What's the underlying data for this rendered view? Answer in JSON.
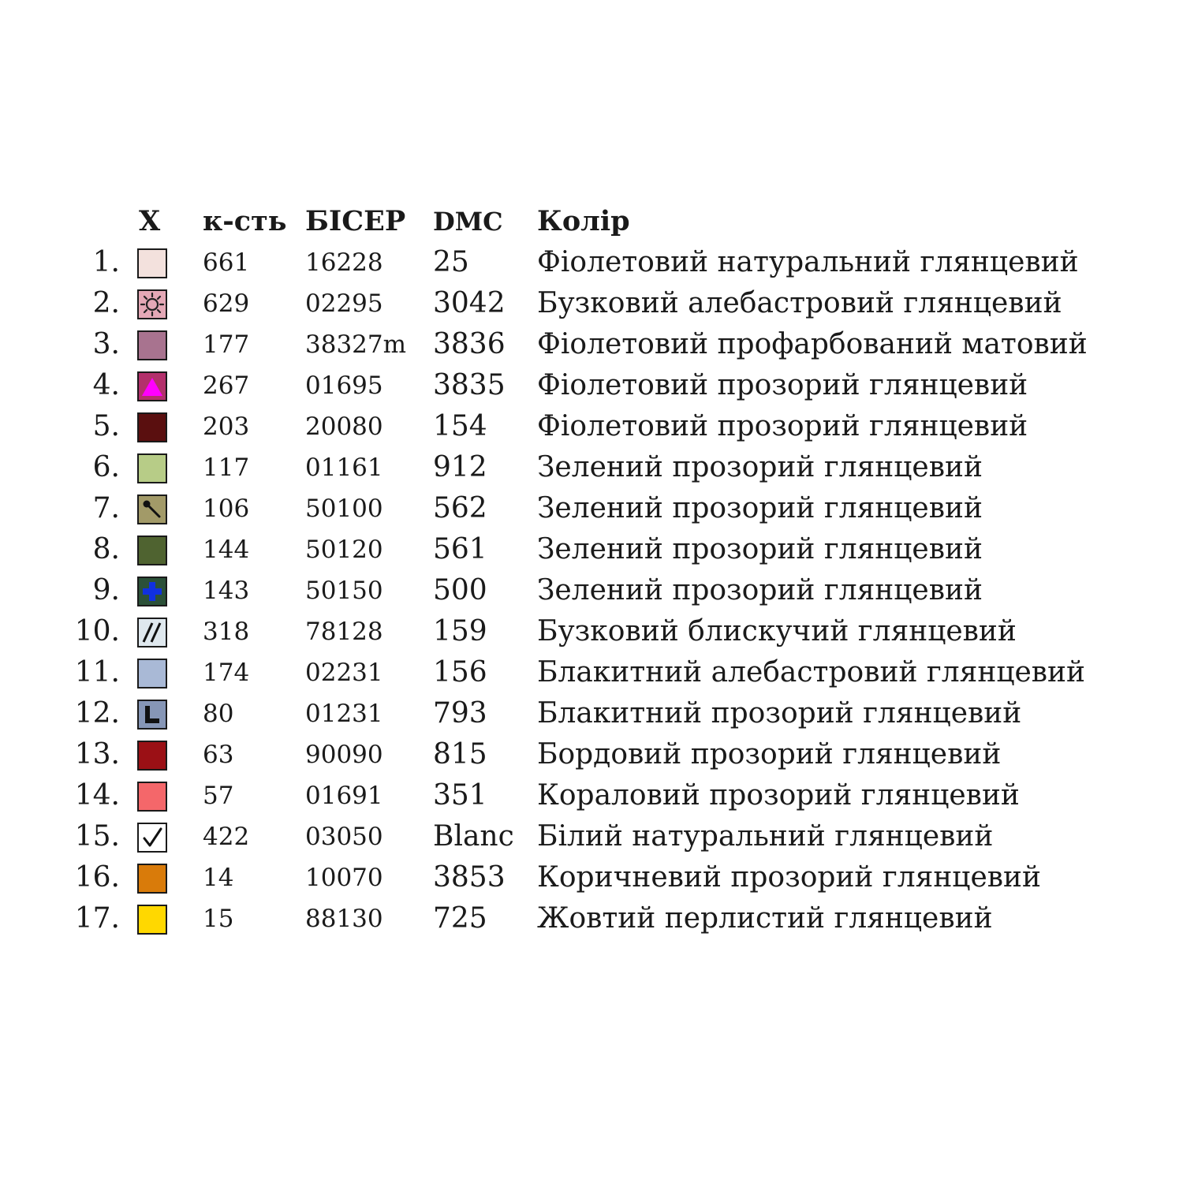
{
  "headers": {
    "symbol": "X",
    "quantity": "к-сть",
    "bead": "БІСЕР",
    "dmc": "DMC",
    "color": "Колір"
  },
  "rows": [
    {
      "num": "1.",
      "color": "#f3e1dd",
      "icon": "plain-swatch-icon",
      "qty": "661",
      "bead": "16228",
      "dmc": "25",
      "name": "Фіолетовий натуральний глянцевий"
    },
    {
      "num": "2.",
      "color": "#e4a8b6",
      "icon": "sun-symbol-icon",
      "qty": "629",
      "bead": "02295",
      "dmc": "3042",
      "name": "Бузковий алебастровий глянцевий"
    },
    {
      "num": "3.",
      "color": "#a8738f",
      "icon": "plain-swatch-icon",
      "qty": "177",
      "bead": "38327m",
      "dmc": "3836",
      "name": "Фіолетовий профарбований матовий"
    },
    {
      "num": "4.",
      "color": "#b3306b",
      "icon": "triangle-symbol-icon",
      "qty": "267",
      "bead": "01695",
      "dmc": "3835",
      "name": "Фіолетовий прозорий глянцевий"
    },
    {
      "num": "5.",
      "color": "#5a0f0f",
      "icon": "plain-swatch-icon",
      "qty": "203",
      "bead": "20080",
      "dmc": "154",
      "name": "Фіолетовий прозорий глянцевий"
    },
    {
      "num": "6.",
      "color": "#b7cc87",
      "icon": "plain-swatch-icon",
      "qty": "117",
      "bead": "01161",
      "dmc": "912",
      "name": "Зелений прозорий глянцевий"
    },
    {
      "num": "7.",
      "color": "#a29a68",
      "icon": "pin-symbol-icon",
      "qty": "106",
      "bead": "50100",
      "dmc": "562",
      "name": "Зелений прозорий глянцевий"
    },
    {
      "num": "8.",
      "color": "#4f6330",
      "icon": "plain-swatch-icon",
      "qty": "144",
      "bead": "50120",
      "dmc": "561",
      "name": "Зелений прозорий глянцевий"
    },
    {
      "num": "9.",
      "color": "#2b5038",
      "icon": "plus-symbol-icon",
      "qty": "143",
      "bead": "50150",
      "dmc": "500",
      "name": "Зелений прозорий глянцевий"
    },
    {
      "num": "10.",
      "color": "#dfe8ee",
      "icon": "double-slash-symbol-icon",
      "qty": "318",
      "bead": "78128",
      "dmc": "159",
      "name": "Бузковий блискучий глянцевий"
    },
    {
      "num": "11.",
      "color": "#a9b9d6",
      "icon": "plain-swatch-icon",
      "qty": "174",
      "bead": "02231",
      "dmc": "156",
      "name": "Блакитний алебастровий глянцевий"
    },
    {
      "num": "12.",
      "color": "#8696b6",
      "icon": "l-shape-symbol-icon",
      "qty": "80",
      "bead": "01231",
      "dmc": "793",
      "name": "Блакитний прозорий глянцевий"
    },
    {
      "num": "13.",
      "color": "#9b1015",
      "icon": "plain-swatch-icon",
      "qty": "63",
      "bead": "90090",
      "dmc": "815",
      "name": "Бордовий прозорий глянцевий"
    },
    {
      "num": "14.",
      "color": "#f4676a",
      "icon": "plain-swatch-icon",
      "qty": "57",
      "bead": "01691",
      "dmc": "351",
      "name": "Кораловий прозорий  глянцевий"
    },
    {
      "num": "15.",
      "color": "#ffffff",
      "icon": "checkmark-symbol-icon",
      "qty": "422",
      "bead": "03050",
      "dmc": "Blanc",
      "name": "Білий натуральний  глянцевий"
    },
    {
      "num": "16.",
      "color": "#d97b0a",
      "icon": "plain-swatch-icon",
      "qty": "14",
      "bead": "10070",
      "dmc": "3853",
      "name": "Коричневий прозорий  глянцевий"
    },
    {
      "num": "17.",
      "color": "#ffd800",
      "icon": "plain-swatch-icon",
      "qty": "15",
      "bead": "88130",
      "dmc": "725",
      "name": "Жовтий перлистий  глянцевий"
    }
  ]
}
